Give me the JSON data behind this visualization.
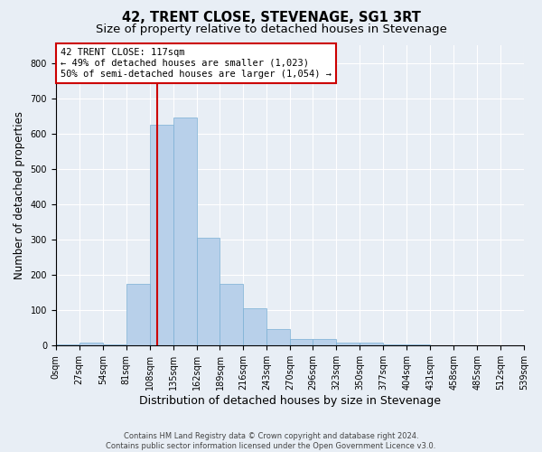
{
  "title": "42, TRENT CLOSE, STEVENAGE, SG1 3RT",
  "subtitle": "Size of property relative to detached houses in Stevenage",
  "xlabel": "Distribution of detached houses by size in Stevenage",
  "ylabel": "Number of detached properties",
  "bin_edges": [
    0,
    27,
    54,
    81,
    108,
    135,
    162,
    189,
    216,
    243,
    270,
    296,
    323,
    350,
    377,
    404,
    431,
    458,
    485,
    512,
    539
  ],
  "bar_heights": [
    4,
    8,
    4,
    175,
    625,
    645,
    305,
    175,
    105,
    48,
    20,
    20,
    8,
    8,
    4,
    4,
    0,
    0,
    0,
    0
  ],
  "bar_color": "#b8d0ea",
  "bar_edge_color": "#7aafd4",
  "property_size": 117,
  "red_line_color": "#cc0000",
  "annotation_text": "42 TRENT CLOSE: 117sqm\n← 49% of detached houses are smaller (1,023)\n50% of semi-detached houses are larger (1,054) →",
  "annotation_box_color": "#ffffff",
  "annotation_box_edge_color": "#cc0000",
  "footer_line1": "Contains HM Land Registry data © Crown copyright and database right 2024.",
  "footer_line2": "Contains public sector information licensed under the Open Government Licence v3.0.",
  "ylim": [
    0,
    850
  ],
  "yticks": [
    0,
    100,
    200,
    300,
    400,
    500,
    600,
    700,
    800
  ],
  "background_color": "#e8eef5",
  "grid_color": "#ffffff",
  "title_fontsize": 10.5,
  "subtitle_fontsize": 9.5,
  "tick_label_fontsize": 7,
  "ylabel_fontsize": 8.5,
  "xlabel_fontsize": 9,
  "annotation_fontsize": 7.5
}
